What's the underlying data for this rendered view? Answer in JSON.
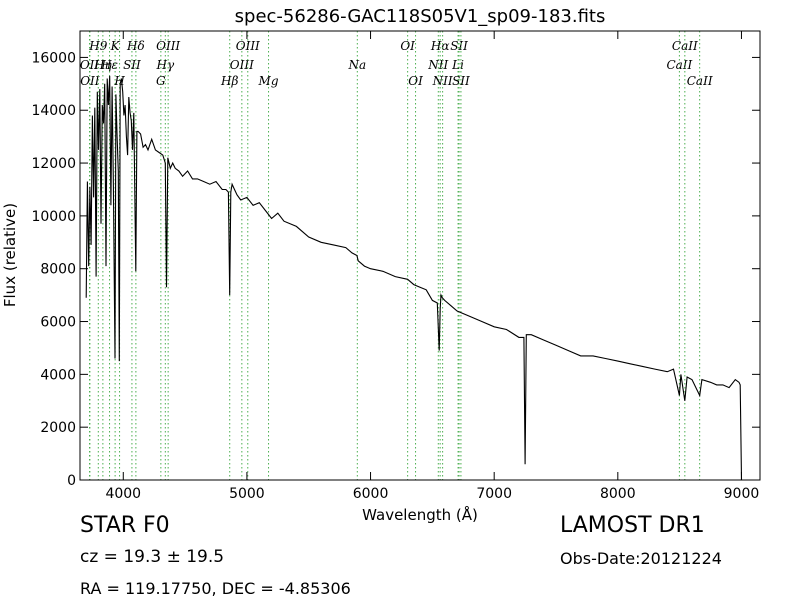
{
  "chart_data": {
    "type": "line",
    "title": "spec-56286-GAC118S05V1_sp09-183.fits",
    "xlabel": "Wavelength (Å)",
    "ylabel": "Flux (relative)",
    "xlim": [
      3650,
      9150
    ],
    "ylim": [
      0,
      17000
    ],
    "xticks": [
      4000,
      5000,
      6000,
      7000,
      8000,
      9000
    ],
    "yticks": [
      0,
      2000,
      4000,
      6000,
      8000,
      10000,
      12000,
      14000,
      16000
    ],
    "grid": false,
    "series": [
      {
        "color": "#000000",
        "x": [
          3700,
          3710,
          3720,
          3730,
          3740,
          3750,
          3760,
          3770,
          3780,
          3790,
          3800,
          3810,
          3820,
          3830,
          3840,
          3850,
          3860,
          3870,
          3880,
          3890,
          3900,
          3910,
          3920,
          3933,
          3940,
          3950,
          3960,
          3968,
          3975,
          3985,
          3995,
          4005,
          4015,
          4025,
          4035,
          4045,
          4055,
          4065,
          4075,
          4085,
          4101,
          4110,
          4120,
          4140,
          4160,
          4180,
          4200,
          4230,
          4260,
          4290,
          4320,
          4340,
          4350,
          4360,
          4380,
          4400,
          4420,
          4450,
          4480,
          4520,
          4560,
          4600,
          4650,
          4700,
          4750,
          4800,
          4830,
          4850,
          4861,
          4870,
          4880,
          4900,
          4920,
          4950,
          5000,
          5050,
          5100,
          5150,
          5200,
          5250,
          5300,
          5400,
          5500,
          5600,
          5700,
          5800,
          5850,
          5890,
          5900,
          5950,
          6000,
          6100,
          6200,
          6300,
          6350,
          6400,
          6450,
          6500,
          6540,
          6555,
          6563,
          6570,
          6580,
          6600,
          6650,
          6700,
          6800,
          6900,
          7000,
          7100,
          7200,
          7240,
          7250,
          7260,
          7300,
          7400,
          7500,
          7600,
          7700,
          7800,
          7900,
          8000,
          8100,
          8200,
          8300,
          8400,
          8450,
          8498,
          8510,
          8542,
          8560,
          8600,
          8662,
          8680,
          8750,
          8800,
          8850,
          8900,
          8950,
          8980,
          8990,
          9000,
          9010
        ],
        "y": [
          6900,
          11300,
          8100,
          11100,
          8900,
          13800,
          10700,
          14100,
          7700,
          14700,
          12500,
          14800,
          9700,
          14200,
          13500,
          15000,
          8100,
          15200,
          14200,
          15300,
          10400,
          14900,
          11100,
          4600,
          14600,
          13000,
          11700,
          4500,
          15000,
          15200,
          14700,
          13800,
          14200,
          13000,
          12300,
          14500,
          13900,
          13600,
          12500,
          13900,
          7900,
          13200,
          13200,
          13100,
          12600,
          12700,
          12500,
          12900,
          12500,
          12400,
          12300,
          12000,
          7300,
          12200,
          11800,
          12000,
          11800,
          11700,
          11500,
          11700,
          11400,
          11400,
          11300,
          11200,
          11300,
          11000,
          11000,
          10900,
          7000,
          10900,
          11200,
          11000,
          10800,
          10600,
          10700,
          10400,
          10500,
          10200,
          9900,
          10100,
          9800,
          9600,
          9200,
          9000,
          8900,
          8800,
          8600,
          8500,
          8300,
          8100,
          8000,
          7900,
          7700,
          7600,
          7400,
          7300,
          7200,
          6800,
          6700,
          4900,
          6500,
          7000,
          6900,
          6800,
          6600,
          6400,
          6200,
          6000,
          5800,
          5700,
          5400,
          5400,
          600,
          5500,
          5500,
          5300,
          5100,
          4900,
          4700,
          4700,
          4600,
          4500,
          4400,
          4300,
          4200,
          4100,
          4200,
          3200,
          4000,
          3000,
          3900,
          3800,
          3200,
          3800,
          3700,
          3600,
          3600,
          3500,
          3800,
          3700,
          3600,
          0,
          0
        ]
      }
    ],
    "lines": [
      {
        "x": 3727,
        "labels": [
          "OII"
        ],
        "row": [
          1
        ]
      },
      {
        "x": 3730,
        "labels": [
          "OII"
        ],
        "row": [
          2
        ]
      },
      {
        "x": 3798,
        "labels": [
          "H9"
        ],
        "row": [
          0
        ]
      },
      {
        "x": 3835,
        "labels": [
          "Hη"
        ],
        "row": [
          1
        ]
      },
      {
        "x": 3889,
        "labels": [
          "Hε"
        ],
        "row": [
          1
        ]
      },
      {
        "x": 3934,
        "labels": [
          "K"
        ],
        "row": [
          0
        ]
      },
      {
        "x": 3970,
        "labels": [
          "H"
        ],
        "row": [
          2
        ]
      },
      {
        "x": 4070,
        "labels": [
          "SII"
        ],
        "row": [
          1
        ]
      },
      {
        "x": 4102,
        "labels": [
          "Hδ"
        ],
        "row": [
          0
        ]
      },
      {
        "x": 4304,
        "labels": [
          "G"
        ],
        "row": [
          2
        ]
      },
      {
        "x": 4340,
        "labels": [
          "Hγ"
        ],
        "row": [
          1
        ]
      },
      {
        "x": 4363,
        "labels": [
          "OIII"
        ],
        "row": [
          0
        ]
      },
      {
        "x": 4861,
        "labels": [
          "Hβ"
        ],
        "row": [
          2
        ]
      },
      {
        "x": 4959,
        "labels": [
          "OIII"
        ],
        "row": [
          1
        ]
      },
      {
        "x": 5007,
        "labels": [
          "OIII"
        ],
        "row": [
          0
        ]
      },
      {
        "x": 5175,
        "labels": [
          "Mg"
        ],
        "row": [
          2
        ]
      },
      {
        "x": 5893,
        "labels": [
          "Na"
        ],
        "row": [
          1
        ]
      },
      {
        "x": 6300,
        "labels": [
          "OI"
        ],
        "row": [
          0
        ]
      },
      {
        "x": 6364,
        "labels": [
          "OI"
        ],
        "row": [
          2
        ]
      },
      {
        "x": 6548,
        "labels": [
          "NII"
        ],
        "row": [
          1
        ]
      },
      {
        "x": 6563,
        "labels": [
          "Hα"
        ],
        "row": [
          0
        ]
      },
      {
        "x": 6583,
        "labels": [
          "NII"
        ],
        "row": [
          2
        ]
      },
      {
        "x": 6708,
        "labels": [
          "Li"
        ],
        "row": [
          1
        ]
      },
      {
        "x": 6716,
        "labels": [
          "SII"
        ],
        "row": [
          0
        ]
      },
      {
        "x": 6731,
        "labels": [
          "SII"
        ],
        "row": [
          2
        ]
      },
      {
        "x": 8498,
        "labels": [
          "CaII"
        ],
        "row": [
          1
        ]
      },
      {
        "x": 8542,
        "labels": [
          "CaII"
        ],
        "row": [
          0
        ]
      },
      {
        "x": 8662,
        "labels": [
          "CaII"
        ],
        "row": [
          2
        ]
      }
    ]
  },
  "info": {
    "class": "STAR   F0",
    "survey": "LAMOST DR1",
    "cz": "cz = 19.3  ± 19.5",
    "obsdate": "Obs-Date:20121224",
    "radec": "RA = 119.17750, DEC = -4.85306"
  }
}
